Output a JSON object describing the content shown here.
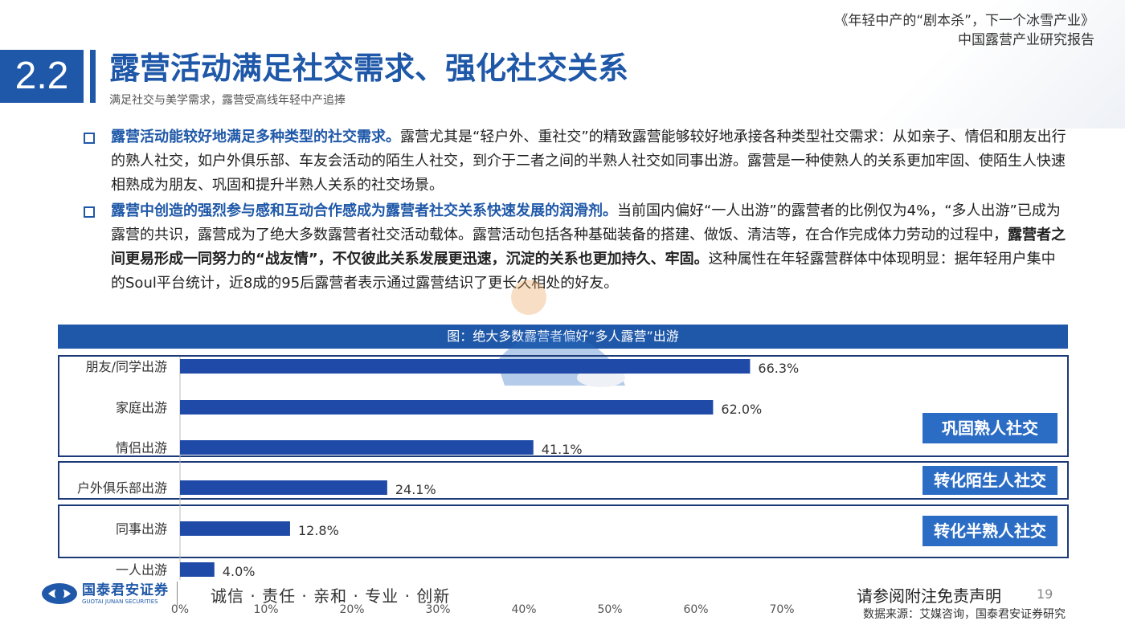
{
  "header": {
    "report_title_line1": "《年轻中产的“剧本杀”，下一个冰雪产业》",
    "report_title_line2": "中国露营产业研究报告"
  },
  "section": {
    "number": "2.2",
    "title": "露营活动满足社交需求、强化社交关系",
    "subtitle": "满足社交与美学需求，露营受高线年轻中产追捧"
  },
  "bullets": [
    {
      "lead": "露营活动能较好地满足多种类型的社交需求。",
      "text": "露营尤其是“轻户外、重社交”的精致露营能够较好地承接各种类型社交需求：从如亲子、情侣和朋友出行的熟人社交，如户外俱乐部、车友会活动的陌生人社交，到介于二者之间的半熟人社交如同事出游。露营是一种使熟人的关系更加牢固、使陌生人快速相熟成为朋友、巩固和提升半熟人关系的社交场景。"
    },
    {
      "lead": "露营中创造的强烈参与感和互动合作感成为露营者社交关系快速发展的润滑剂。",
      "text1": "当前国内偏好“一人出游”的露营者的比例仅为4%，“多人出游”已成为露营的共识，露营成为了绝大多数露营者社交活动载体。露营活动包括各种基础装备的搭建、做饭、清洁等，在合作完成体力劳动的过程中，",
      "bold": "露营者之间更易形成一同努力的“战友情”，不仅彼此关系发展更迅速，沉淀的关系也更加持久、牢固。",
      "text2": "这种属性在年轻露营群体中体现明显：据年轻用户集中的Soul平台统计，近8成的95后露营者表示通过露营结识了更长久相处的好友。"
    }
  ],
  "chart_header": "图：绝大多数露营者偏好“多人露营”出游",
  "chart_data": {
    "type": "bar",
    "orientation": "horizontal",
    "categories": [
      "朋友/同学出游",
      "家庭出游",
      "情侣出游",
      "户外俱乐部出游",
      "同事出游",
      "一人出游"
    ],
    "values": [
      66.3,
      62.0,
      41.1,
      24.1,
      12.8,
      4.0
    ],
    "value_labels": [
      "66.3%",
      "62.0%",
      "41.1%",
      "24.1%",
      "12.8%",
      "4.0%"
    ],
    "xlim": [
      0,
      70
    ],
    "xticks": [
      "0%",
      "10%",
      "20%",
      "30%",
      "40%",
      "50%",
      "60%",
      "70%"
    ],
    "bar_color": "#1f4aa8",
    "groups": [
      "巩固熟人社交",
      "转化陌生人社交",
      "转化半熟人社交"
    ]
  },
  "footer": {
    "logo_cn": "国泰君安证券",
    "logo_en": "GUOTAI JUNAN SECURITIES",
    "slogan": "诚信 · 责任 · 亲和 · 专业 · 创新",
    "disclaimer": "请参阅附注免责声明",
    "page_number": "19",
    "source": "数据来源：艾媒咨询，国泰君安证券研究"
  },
  "colors": {
    "brand_blue": "#1f58a8",
    "label_blue": "#2b6cc4",
    "border_navy": "#1c3a78"
  }
}
